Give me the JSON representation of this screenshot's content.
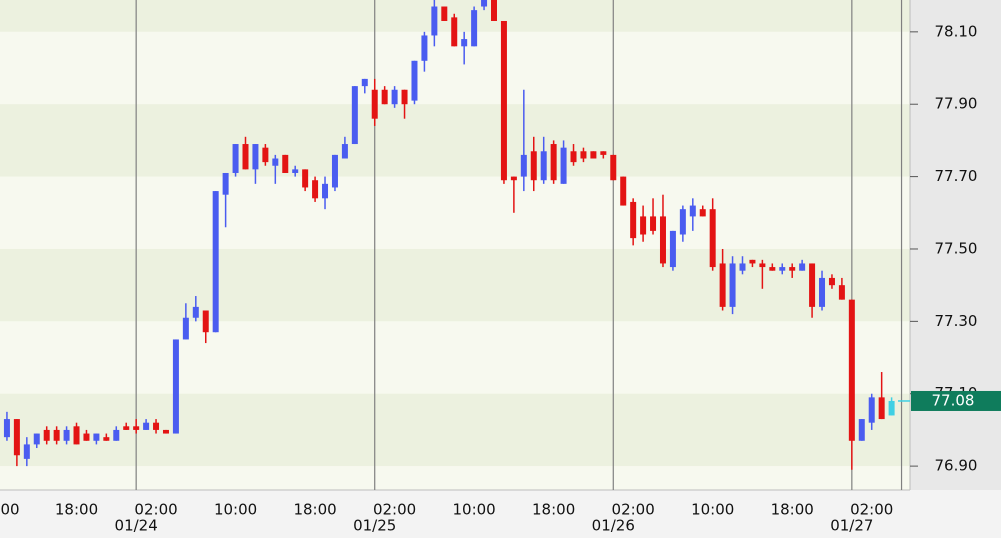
{
  "chart_data": {
    "type": "candlestick",
    "categories": [
      "00",
      null,
      null,
      null,
      null,
      null,
      null,
      null,
      "18:00",
      null,
      null,
      null,
      null,
      null,
      null,
      null,
      "02:00",
      null,
      null,
      null,
      null,
      null,
      null,
      null,
      "10:00",
      null,
      null,
      null,
      null,
      null,
      null,
      null,
      "18:00",
      null,
      null,
      null,
      null,
      null,
      null,
      null,
      "02:00",
      null,
      null,
      null,
      null,
      null,
      null,
      null,
      "10:00",
      null,
      null,
      null,
      null,
      null,
      null,
      null,
      "18:00",
      null,
      null,
      null,
      null,
      null,
      null,
      null,
      "02:00",
      null,
      null,
      null,
      null,
      null,
      null,
      null,
      "10:00",
      null,
      null,
      null,
      null,
      null,
      null,
      null,
      "18:00",
      null,
      null,
      null,
      null,
      null,
      null,
      null,
      "02:00",
      null,
      null,
      null
    ],
    "dates": [
      null,
      null,
      null,
      null,
      null,
      null,
      null,
      null,
      null,
      null,
      null,
      null,
      null,
      null,
      "01/24",
      null,
      null,
      null,
      null,
      null,
      null,
      null,
      null,
      null,
      null,
      null,
      null,
      null,
      null,
      null,
      null,
      null,
      null,
      null,
      null,
      null,
      null,
      null,
      "01/25",
      null,
      null,
      null,
      null,
      null,
      null,
      null,
      null,
      null,
      null,
      null,
      null,
      null,
      null,
      null,
      null,
      null,
      null,
      null,
      null,
      null,
      null,
      null,
      "01/26",
      null,
      null,
      null,
      null,
      null,
      null,
      null,
      null,
      null,
      null,
      null,
      null,
      null,
      null,
      null,
      null,
      null,
      null,
      null,
      null,
      null,
      null,
      null,
      "01/27",
      null,
      null,
      null,
      null
    ],
    "open": [
      null,
      76.98,
      77.03,
      76.92,
      76.96,
      77.0,
      77.0,
      76.97,
      77.01,
      76.99,
      76.97,
      76.98,
      76.97,
      77.01,
      77.01,
      77.0,
      77.02,
      77.0,
      76.99,
      77.25,
      77.31,
      77.33,
      77.27,
      77.65,
      77.71,
      77.79,
      77.72,
      77.78,
      77.73,
      77.76,
      77.71,
      77.72,
      77.69,
      77.64,
      77.67,
      77.75,
      77.79,
      77.95,
      77.94,
      77.94,
      77.9,
      77.94,
      77.91,
      78.02,
      78.09,
      78.17,
      78.14,
      78.06,
      78.06,
      78.17,
      78.19,
      78.13,
      77.7,
      77.7,
      77.77,
      77.69,
      77.79,
      77.68,
      77.77,
      77.77,
      77.77,
      77.77,
      77.76,
      77.7,
      77.63,
      77.59,
      77.59,
      77.59,
      77.45,
      77.54,
      77.59,
      77.61,
      77.61,
      77.46,
      77.34,
      77.44,
      77.47,
      77.46,
      77.45,
      77.44,
      77.45,
      77.44,
      77.46,
      77.34,
      77.42,
      77.4,
      77.36,
      76.97,
      77.02,
      77.09,
      77.04
    ],
    "high": [
      null,
      77.05,
      77.03,
      76.98,
      76.99,
      77.01,
      77.01,
      77.01,
      77.02,
      77.0,
      76.99,
      76.99,
      77.01,
      77.02,
      77.03,
      77.03,
      77.03,
      77.0,
      77.25,
      77.35,
      77.37,
      77.33,
      77.66,
      77.71,
      77.79,
      77.81,
      77.79,
      77.79,
      77.76,
      77.76,
      77.73,
      77.72,
      77.7,
      77.7,
      77.76,
      77.81,
      77.95,
      77.97,
      77.97,
      77.95,
      77.95,
      77.94,
      78.02,
      78.1,
      78.19,
      78.17,
      78.15,
      78.1,
      78.17,
      78.19,
      78.19,
      78.13,
      77.7,
      77.94,
      77.81,
      77.81,
      77.8,
      77.8,
      77.79,
      77.78,
      77.77,
      77.77,
      77.76,
      77.7,
      77.64,
      77.62,
      77.64,
      77.65,
      77.55,
      77.62,
      77.64,
      77.62,
      77.64,
      77.5,
      77.48,
      77.48,
      77.47,
      77.47,
      77.46,
      77.46,
      77.46,
      77.47,
      77.46,
      77.44,
      77.43,
      77.42,
      77.36,
      77.03,
      77.1,
      77.16,
      77.09
    ],
    "low": [
      null,
      76.97,
      76.9,
      76.9,
      76.95,
      76.96,
      76.96,
      76.96,
      76.96,
      76.97,
      76.96,
      76.97,
      76.97,
      77.0,
      76.99,
      77.0,
      76.99,
      76.99,
      76.99,
      77.25,
      77.3,
      77.24,
      77.27,
      77.56,
      77.7,
      77.72,
      77.68,
      77.73,
      77.68,
      77.71,
      77.7,
      77.66,
      77.63,
      77.61,
      77.66,
      77.75,
      77.79,
      77.93,
      77.84,
      77.9,
      77.89,
      77.86,
      77.9,
      77.99,
      78.06,
      78.13,
      78.06,
      78.01,
      78.06,
      78.16,
      78.13,
      77.68,
      77.6,
      77.66,
      77.66,
      77.68,
      77.68,
      77.68,
      77.73,
      77.74,
      77.75,
      77.75,
      77.69,
      77.62,
      77.51,
      77.52,
      77.54,
      77.45,
      77.44,
      77.52,
      77.55,
      77.59,
      77.44,
      77.33,
      77.32,
      77.43,
      77.45,
      77.39,
      77.44,
      77.43,
      77.42,
      77.44,
      77.31,
      77.33,
      77.39,
      77.36,
      76.89,
      76.97,
      77.0,
      77.03,
      77.04
    ],
    "close": [
      null,
      77.03,
      76.93,
      76.96,
      76.99,
      76.97,
      76.97,
      77.0,
      76.96,
      76.97,
      76.99,
      76.97,
      77.0,
      77.0,
      77.0,
      77.02,
      77.0,
      76.99,
      77.25,
      77.31,
      77.34,
      77.27,
      77.66,
      77.71,
      77.79,
      77.72,
      77.79,
      77.74,
      77.75,
      77.71,
      77.72,
      77.67,
      77.64,
      77.68,
      77.76,
      77.79,
      77.95,
      77.97,
      77.86,
      77.9,
      77.94,
      77.9,
      78.02,
      78.09,
      78.17,
      78.13,
      78.06,
      78.08,
      78.16,
      78.19,
      78.13,
      77.69,
      77.69,
      77.76,
      77.69,
      77.77,
      77.69,
      77.78,
      77.74,
      77.75,
      77.75,
      77.76,
      77.69,
      77.62,
      77.53,
      77.54,
      77.55,
      77.46,
      77.55,
      77.61,
      77.62,
      77.59,
      77.45,
      77.34,
      77.46,
      77.46,
      77.46,
      77.45,
      77.44,
      77.45,
      77.44,
      77.46,
      77.34,
      77.42,
      77.4,
      77.36,
      76.97,
      77.03,
      77.09,
      77.03,
      77.08
    ],
    "up_color": "#4a5cf0",
    "down_color": "#e31414",
    "last_color": "#3fd0e4",
    "last_price": 77.08,
    "last_price_color": "#0f7c5c",
    "ylim": [
      76.834,
      78.188
    ],
    "yticks": [
      {
        "value": 76.9,
        "label": "76.90"
      },
      {
        "value": 77.1,
        "label": "77.10"
      },
      {
        "value": 77.3,
        "label": "77.30"
      },
      {
        "value": 77.5,
        "label": "77.50"
      },
      {
        "value": 77.7,
        "label": "77.70"
      },
      {
        "value": 77.9,
        "label": "77.90"
      },
      {
        "value": 78.1,
        "label": "78.10"
      }
    ],
    "grid": true
  }
}
